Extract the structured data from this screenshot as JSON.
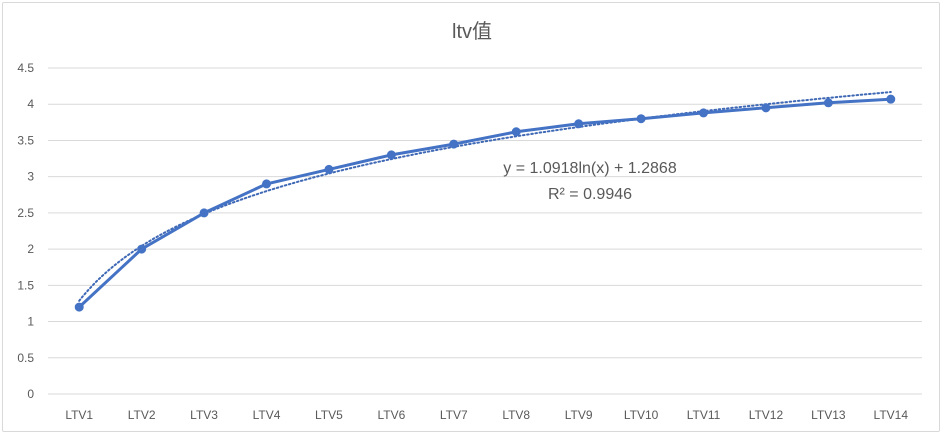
{
  "chart_data": {
    "type": "line",
    "title": "ltv值",
    "xlabel": "",
    "ylabel": "",
    "categories": [
      "LTV1",
      "LTV2",
      "LTV3",
      "LTV4",
      "LTV5",
      "LTV6",
      "LTV7",
      "LTV8",
      "LTV9",
      "LTV10",
      "LTV11",
      "LTV12",
      "LTV13",
      "LTV14"
    ],
    "series": [
      {
        "values": [
          1.2,
          2.0,
          2.5,
          2.9,
          3.1,
          3.3,
          3.45,
          3.62,
          3.73,
          3.8,
          3.88,
          3.95,
          4.02,
          4.07
        ]
      }
    ],
    "ylim": [
      0,
      4.5
    ],
    "yticks": [
      "0",
      "0.5",
      "1",
      "1.5",
      "2",
      "2.5",
      "3",
      "3.5",
      "4",
      "4.5"
    ],
    "grid": true,
    "legend": "none",
    "trendline": {
      "type": "logarithmic",
      "a": 1.0918,
      "b": 1.2868,
      "equation": "y = 1.0918ln(x) + 1.2868",
      "r_squared": "R² = 0.9946"
    },
    "colors": {
      "series": "#4472c4",
      "grid": "#d9d9d9",
      "text": "#595959"
    }
  }
}
